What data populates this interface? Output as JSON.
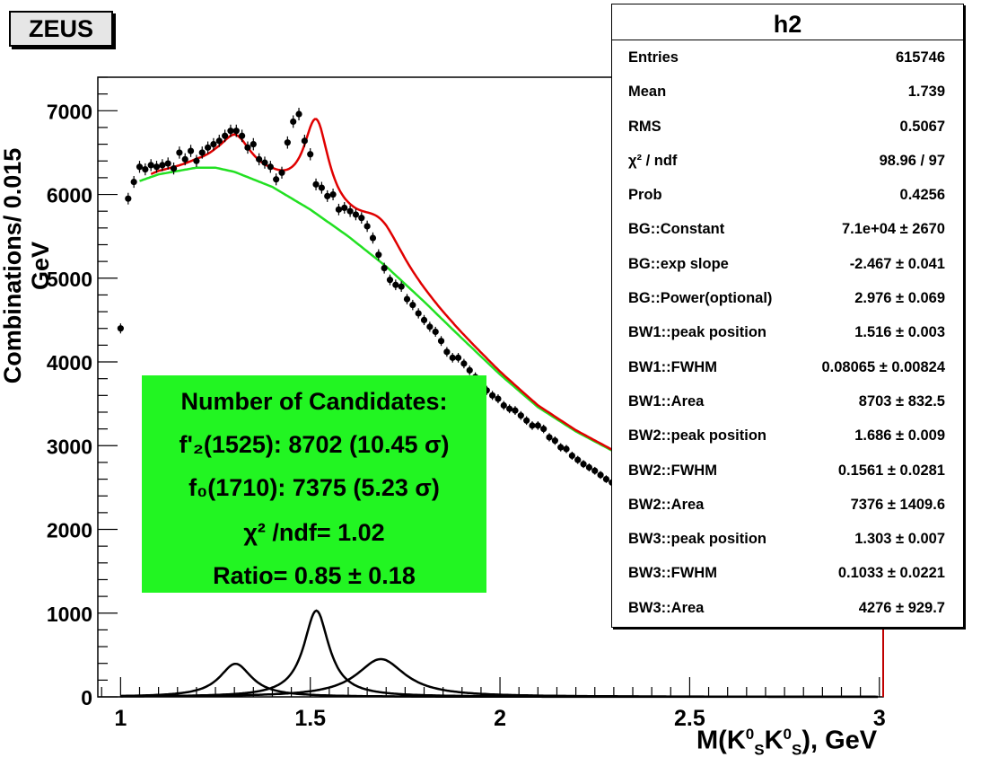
{
  "badge": "ZEUS",
  "stats": {
    "title": "h2",
    "rows": [
      {
        "k": "Entries",
        "v": "615746"
      },
      {
        "k": "Mean",
        "v": "1.739"
      },
      {
        "k": "RMS",
        "v": "0.5067"
      },
      {
        "k": "χ² / ndf",
        "v": "98.96 / 97"
      },
      {
        "k": "Prob",
        "v": "0.4256"
      },
      {
        "k": "BG::Constant",
        "v": "7.1e+04 ± 2670"
      },
      {
        "k": "BG::exp slope",
        "v": "-2.467 ± 0.041"
      },
      {
        "k": "BG::Power(optional)",
        "v": "2.976 ± 0.069"
      },
      {
        "k": "BW1::peak position",
        "v": "1.516 ± 0.003"
      },
      {
        "k": "BW1::FWHM",
        "v": "0.08065 ± 0.00824"
      },
      {
        "k": "BW1::Area",
        "v": "8703 ± 832.5"
      },
      {
        "k": "BW2::peak position",
        "v": "1.686 ± 0.009"
      },
      {
        "k": "BW2::FWHM",
        "v": "0.1561 ± 0.0281"
      },
      {
        "k": "BW2::Area",
        "v": "7376 ± 1409.6"
      },
      {
        "k": "BW3::peak position",
        "v": "1.303 ± 0.007"
      },
      {
        "k": "BW3::FWHM",
        "v": "0.1033 ± 0.0221"
      },
      {
        "k": "BW3::Area",
        "v": "4276 ± 929.7"
      }
    ]
  },
  "candidates": {
    "l1": "Number of Candidates:",
    "l2": "f'₂(1525): 8702 (10.45 σ)",
    "l3": "f₀(1710): 7375 (5.23 σ)",
    "l4": "χ² /ndf= 1.02",
    "l5": "Ratio= 0.85 ± 0.18"
  },
  "axes": {
    "ylabel": "Combinations/ 0.015 GeV",
    "xlabel_main": "M(K",
    "xlabel_sup1": "0",
    "xlabel_sub1": "S",
    "xlabel_mid": "K",
    "xlabel_sup2": "0",
    "xlabel_sub2": "S",
    "xlabel_tail": "), GeV"
  },
  "chart_data": {
    "type": "scatter",
    "xlim": [
      0.94,
      3.01
    ],
    "ylim": [
      0,
      7400
    ],
    "xticks": [
      1,
      1.5,
      2,
      2.5,
      3
    ],
    "xtick_labels": [
      "1",
      "1.5",
      "2",
      "2.5",
      "3"
    ],
    "yticks": [
      0,
      1000,
      2000,
      3000,
      4000,
      5000,
      6000,
      7000
    ],
    "ytick_labels": [
      "0",
      "1000",
      "2000",
      "3000",
      "4000",
      "5000",
      "6000",
      "7000"
    ],
    "colors": {
      "data": "#000000",
      "total_fit": "#e00000",
      "background": "#22e022",
      "peaks": "#000000"
    },
    "series": [
      {
        "x": [
          1.0,
          1.02,
          1.035,
          1.05,
          1.065,
          1.08,
          1.095,
          1.11,
          1.125,
          1.14,
          1.155,
          1.17,
          1.185,
          1.2,
          1.215,
          1.23,
          1.245,
          1.26,
          1.275,
          1.29,
          1.305,
          1.32,
          1.335,
          1.35,
          1.365,
          1.38,
          1.395,
          1.41,
          1.425,
          1.44,
          1.455,
          1.47,
          1.485,
          1.5,
          1.515,
          1.53,
          1.545,
          1.56,
          1.575,
          1.59,
          1.605,
          1.62,
          1.635,
          1.65,
          1.665,
          1.68,
          1.695,
          1.71,
          1.725,
          1.74,
          1.755,
          1.77,
          1.785,
          1.8,
          1.815,
          1.83,
          1.845,
          1.86,
          1.875,
          1.89,
          1.905,
          1.92,
          1.935,
          1.95,
          1.965,
          1.98,
          1.995,
          2.01,
          2.025,
          2.04,
          2.055,
          2.07,
          2.085,
          2.1,
          2.115,
          2.13,
          2.145,
          2.16,
          2.175,
          2.19,
          2.205,
          2.22,
          2.235,
          2.25,
          2.265,
          2.28,
          2.295
        ],
        "y": [
          4400,
          5950,
          6150,
          6330,
          6300,
          6350,
          6330,
          6350,
          6370,
          6310,
          6500,
          6420,
          6520,
          6400,
          6500,
          6560,
          6600,
          6640,
          6700,
          6760,
          6760,
          6700,
          6560,
          6600,
          6420,
          6380,
          6330,
          6180,
          6260,
          6620,
          6870,
          6960,
          6640,
          6480,
          6120,
          6080,
          5980,
          6000,
          5820,
          5840,
          5800,
          5760,
          5720,
          5620,
          5480,
          5280,
          5120,
          4980,
          4920,
          4900,
          4750,
          4680,
          4580,
          4500,
          4420,
          4360,
          4250,
          4120,
          4050,
          4050,
          3980,
          3900,
          3820,
          3760,
          3660,
          3600,
          3560,
          3480,
          3440,
          3420,
          3360,
          3300,
          3240,
          3240,
          3200,
          3100,
          3060,
          2980,
          2960,
          2880,
          2830,
          2780,
          2740,
          2700,
          2650,
          2600,
          2560
        ]
      }
    ]
  }
}
